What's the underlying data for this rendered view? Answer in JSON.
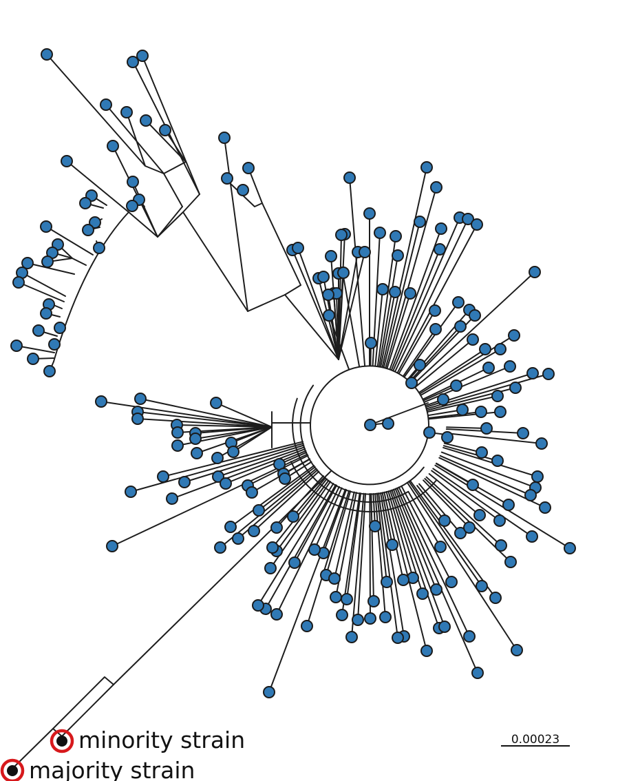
{
  "legend": {
    "minority": "minority strain",
    "majority": "majority strain"
  },
  "scale_bar": {
    "label": "0.00023"
  },
  "colors": {
    "leaf_fill": "#3079b5",
    "highlight_ring": "#d7191c",
    "highlight_dot": "#111111",
    "branch": "#1d1d1d"
  }
}
